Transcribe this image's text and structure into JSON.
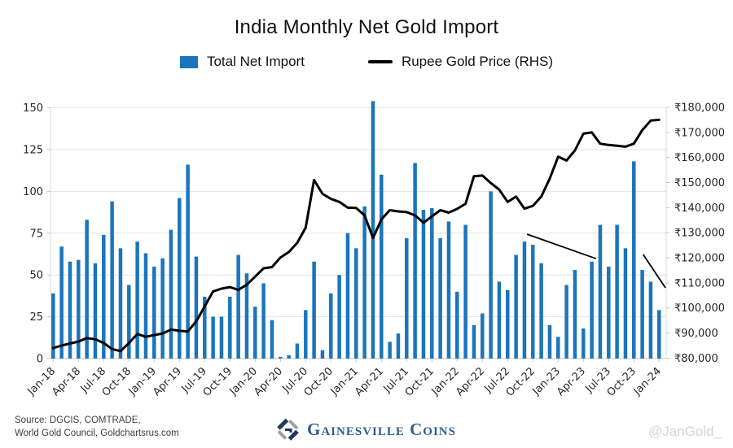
{
  "title": "India Monthly Net Gold Import",
  "legend": {
    "bar_label": "Total Net Import",
    "line_label": "Rupee Gold Price (RHS)"
  },
  "footer": {
    "source_line1": "Source: DGCIS, COMTRADE,",
    "source_line2": "World Gold Council, Goldchartsrus.com",
    "logo_text": "Gainesville Coins",
    "watermark": "@JanGold_"
  },
  "chart_data": {
    "type": "bar+line",
    "title": "India Monthly Net Gold Import",
    "x_tick_every": 3,
    "grid": true,
    "categories": [
      "Jan-18",
      "Feb-18",
      "Mar-18",
      "Apr-18",
      "May-18",
      "Jun-18",
      "Jul-18",
      "Aug-18",
      "Sep-18",
      "Oct-18",
      "Nov-18",
      "Dec-18",
      "Jan-19",
      "Feb-19",
      "Mar-19",
      "Apr-19",
      "May-19",
      "Jun-19",
      "Jul-19",
      "Aug-19",
      "Sep-19",
      "Oct-19",
      "Nov-19",
      "Dec-19",
      "Jan-20",
      "Feb-20",
      "Mar-20",
      "Apr-20",
      "May-20",
      "Jun-20",
      "Jul-20",
      "Aug-20",
      "Sep-20",
      "Oct-20",
      "Nov-20",
      "Dec-20",
      "Jan-21",
      "Feb-21",
      "Mar-21",
      "Apr-21",
      "May-21",
      "Jun-21",
      "Jul-21",
      "Aug-21",
      "Sep-21",
      "Oct-21",
      "Nov-21",
      "Dec-21",
      "Jan-22",
      "Feb-22",
      "Mar-22",
      "Apr-22",
      "May-22",
      "Jun-22",
      "Jul-22",
      "Aug-22",
      "Sep-22",
      "Oct-22",
      "Nov-22",
      "Dec-22",
      "Jan-23",
      "Feb-23",
      "Mar-23",
      "Apr-23",
      "May-23",
      "Jun-23",
      "Jul-23",
      "Aug-23",
      "Sep-23",
      "Oct-23",
      "Nov-23",
      "Dec-23",
      "Jan-24"
    ],
    "series": [
      {
        "name": "Total Net Import",
        "type": "bar",
        "axis": "left",
        "color": "#1b75bc",
        "values": [
          39,
          67,
          58,
          59,
          83,
          57,
          74,
          94,
          66,
          44,
          70,
          63,
          55,
          60,
          77,
          96,
          116,
          61,
          37,
          25,
          25,
          37,
          62,
          51,
          31,
          45,
          23,
          1,
          2,
          9,
          29,
          58,
          5,
          39,
          50,
          75,
          66,
          91,
          154,
          110,
          10,
          15,
          72,
          117,
          89,
          90,
          72,
          82,
          40,
          80,
          20,
          27,
          100,
          46,
          41,
          62,
          70,
          68,
          57,
          20,
          13,
          44,
          53,
          18,
          58,
          80,
          55,
          80,
          66,
          118,
          53,
          46,
          29
        ]
      },
      {
        "name": "Rupee Gold Price (RHS)",
        "type": "line",
        "axis": "right",
        "color": "#000000",
        "values": [
          84000,
          85000,
          85800,
          86600,
          88000,
          87500,
          86000,
          83600,
          82800,
          86000,
          89600,
          88500,
          89200,
          89800,
          91400,
          90900,
          90600,
          94700,
          100600,
          106600,
          107700,
          108300,
          107200,
          109300,
          112500,
          115800,
          116300,
          120100,
          122300,
          126000,
          132000,
          151000,
          145500,
          143500,
          142300,
          140000,
          139900,
          136900,
          127900,
          135300,
          139000,
          138500,
          138200,
          136900,
          134000,
          136500,
          139000,
          138000,
          139500,
          141500,
          152500,
          152800,
          149800,
          147200,
          142300,
          144400,
          139600,
          140700,
          144400,
          151500,
          160300,
          158800,
          162800,
          169500,
          170000,
          165500,
          165000,
          164700,
          164300,
          165500,
          170900,
          174700,
          175000
        ]
      }
    ],
    "left_axis": {
      "range": [
        0,
        150
      ],
      "ticks": [
        {
          "label": "0",
          "value": 0
        },
        {
          "label": "25",
          "value": 25
        },
        {
          "label": "50",
          "value": 50
        },
        {
          "label": "75",
          "value": 75
        },
        {
          "label": "100",
          "value": 100
        },
        {
          "label": "125",
          "value": 125
        },
        {
          "label": "150",
          "value": 150
        }
      ]
    },
    "right_axis": {
      "range": [
        80000,
        180000
      ],
      "ticks": [
        {
          "label": "₹80,000",
          "value": 80000
        },
        {
          "label": "₹90,000",
          "value": 90000
        },
        {
          "label": "₹100,000",
          "value": 100000
        },
        {
          "label": "₹110,000",
          "value": 110000
        },
        {
          "label": "₹120,000",
          "value": 120000
        },
        {
          "label": "₹130,000",
          "value": 130000
        },
        {
          "label": "₹140,000",
          "value": 140000
        },
        {
          "label": "₹150,000",
          "value": 150000
        },
        {
          "label": "₹160,000",
          "value": 160000
        },
        {
          "label": "₹170,000",
          "value": 170000
        },
        {
          "label": "₹180,000",
          "value": 180000
        }
      ]
    },
    "annotations": [
      {
        "type": "trend-line",
        "from": {
          "month_index": 56.3,
          "value": 74.4
        },
        "to": {
          "month_index": 64.5,
          "value": 59.8
        }
      },
      {
        "type": "trend-line",
        "from": {
          "month_index": 70.1,
          "value": 62.3
        },
        "to": {
          "month_index": 72.75,
          "value": 42.3
        }
      }
    ]
  }
}
